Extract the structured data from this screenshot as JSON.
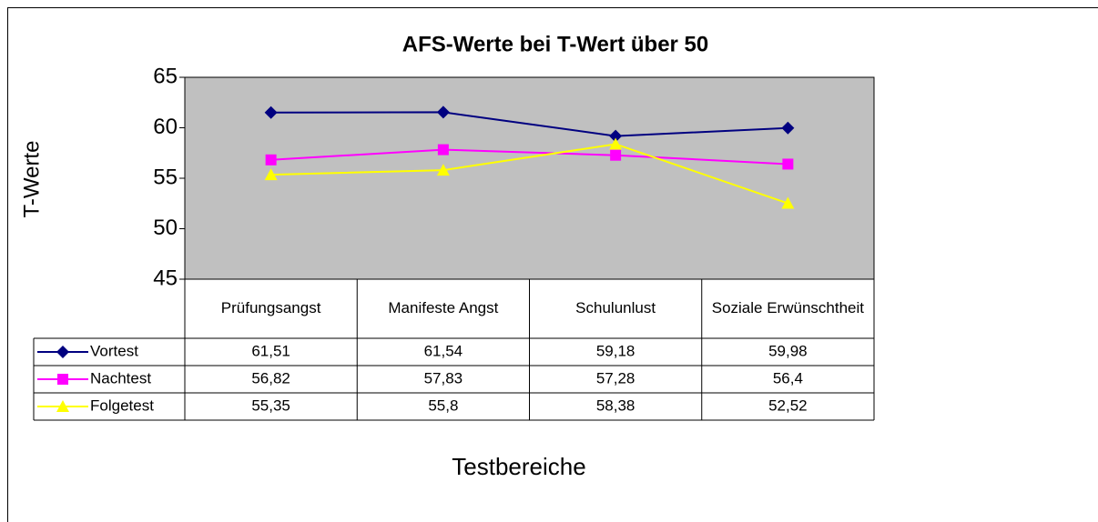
{
  "chart_data": {
    "type": "line",
    "title": "AFS-Werte bei T-Wert über 50",
    "y_label": "T-Werte",
    "x_label": "Testbereiche",
    "categories": [
      "Prüfungsangst",
      "Manifeste Angst",
      "Schulunlust",
      "Soziale Erwünschtheit"
    ],
    "series": [
      {
        "name": "Vortest",
        "color": "#000080",
        "marker": "diamond",
        "values": [
          61.51,
          61.54,
          59.18,
          59.98
        ],
        "value_labels": [
          "61,51",
          "61,54",
          "59,18",
          "59,98"
        ]
      },
      {
        "name": "Nachtest",
        "color": "#ff00ff",
        "marker": "square",
        "values": [
          56.82,
          57.83,
          57.28,
          56.4
        ],
        "value_labels": [
          "56,82",
          "57,83",
          "57,28",
          "56,4"
        ]
      },
      {
        "name": "Folgetest",
        "color": "#ffff00",
        "marker": "triangle",
        "values": [
          55.35,
          55.8,
          58.38,
          52.52
        ],
        "value_labels": [
          "55,35",
          "55,8",
          "58,38",
          "52,52"
        ]
      }
    ],
    "ylim": [
      45,
      65
    ],
    "yticks": [
      45,
      50,
      55,
      60,
      65
    ],
    "plot_background": "#c0c0c0"
  }
}
